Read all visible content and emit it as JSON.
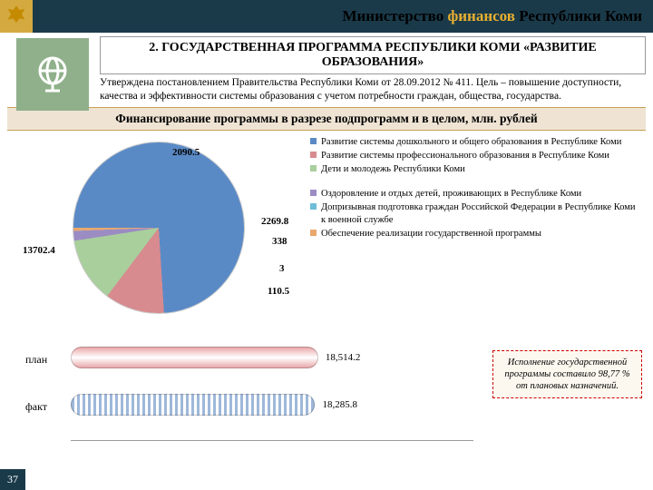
{
  "header": {
    "title_html": "Министерство <span style='color:#e8b030'>финансов</span> Республики Коми",
    "emblem_color": "#d4a940"
  },
  "title_box": "2. ГОСУДАРСТВЕННАЯ ПРОГРАММА РЕСПУБЛИКИ КОМИ «РАЗВИТИЕ ОБРАЗОВАНИЯ»",
  "subtitle": "Утверждена постановлением Правительства Республики Коми от 28.09.2012 № 411. Цель – повышение доступности, качества и эффективности системы образования с учетом потребности граждан, общества, государства.",
  "section_title": "Финансирование программы в разрезе подпрограмм и в целом, млн. рублей",
  "pie": {
    "type": "pie",
    "slices": [
      {
        "label": "13702.4",
        "value": 13702.4,
        "color": "#5a8ac6"
      },
      {
        "label": "2090.5",
        "value": 2090.5,
        "color": "#d78b8f"
      },
      {
        "label": "2269.8",
        "value": 2269.8,
        "color": "#a8cf9c"
      },
      {
        "label": "338",
        "value": 338,
        "color": "#9c8cc4"
      },
      {
        "label": "3",
        "value": 3,
        "color": "#6fbdd9"
      },
      {
        "label": "110.5",
        "value": 110.5,
        "color": "#e8a86e"
      }
    ],
    "border_color": "#cccccc",
    "label_fontsize": 11
  },
  "legend": {
    "items_top": [
      {
        "color": "#5a8ac6",
        "text": "Развитие системы дошкольного и общего образования в Республике Коми"
      },
      {
        "color": "#d78b8f",
        "text": "Развитие системы профессионального образования в Республике Коми"
      },
      {
        "color": "#a8cf9c",
        "text": "Дети и молодежь Республики Коми"
      }
    ],
    "items_bottom": [
      {
        "color": "#9c8cc4",
        "text": "Оздоровление и отдых детей, проживающих в Республике Коми"
      },
      {
        "color": "#6fbdd9",
        "text": "Допризывная подготовка граждан Российской Федерации в Республике Коми к военной службе"
      },
      {
        "color": "#e8a86e",
        "text": "Обеспечение реализации государственной программы"
      }
    ]
  },
  "bars": {
    "type": "bar",
    "rows": [
      {
        "name": "план",
        "value": 18514.2,
        "label": "18,514.2",
        "color": "#e9a8ab"
      },
      {
        "name": "факт",
        "value": 18285.8,
        "label": "18,285.8",
        "color": "#9eb8d9",
        "hatched": true
      }
    ],
    "xmax": 19000
  },
  "exec_box": "Исполнение государственной программы составило 98,77 % от плановых назначений.",
  "page_number": "37"
}
